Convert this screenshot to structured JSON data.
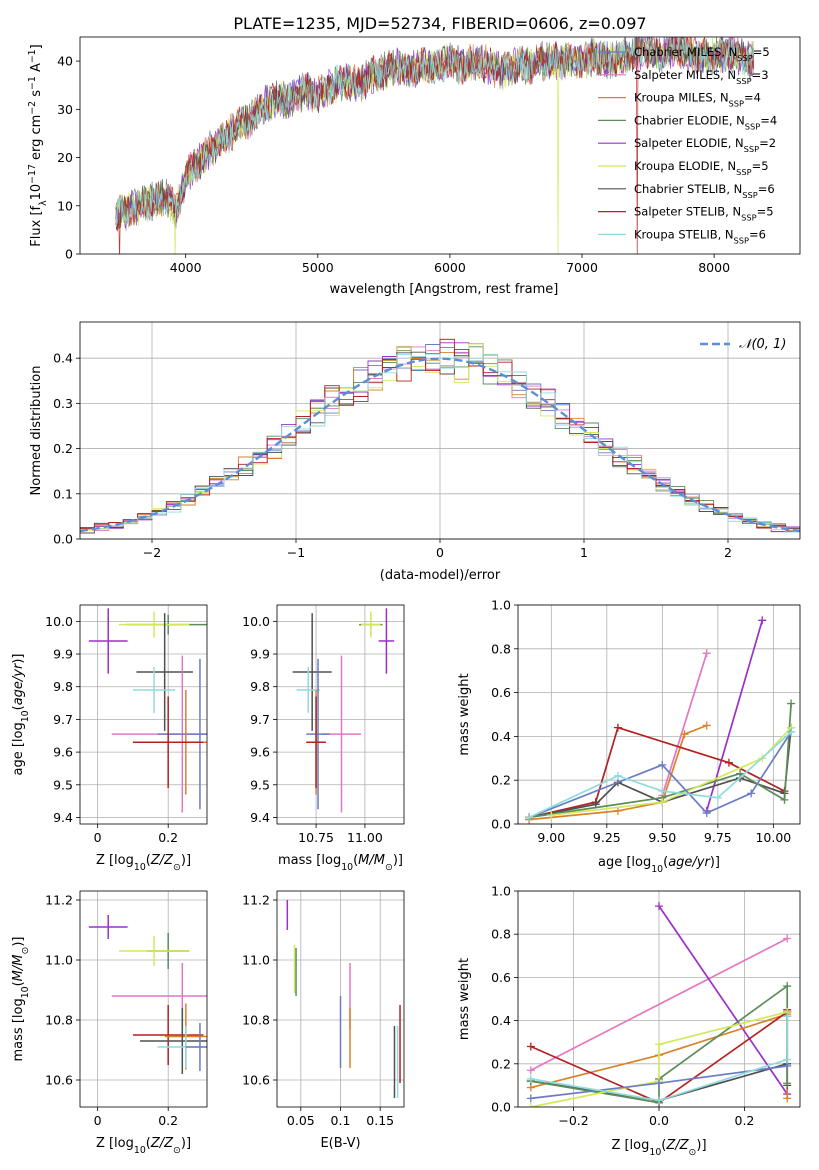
{
  "figure": {
    "title": "PLATE=1235, MJD=52734, FIBERID=0606, z=0.097"
  },
  "chart_data": [
    {
      "id": "spectrum",
      "type": "line",
      "title": "PLATE=1235, MJD=52734, FIBERID=0606, z=0.097",
      "xlabel": "wavelength [Angstrom, rest frame]",
      "ylabel": "Flux [f_λ10^-17 erg cm^-2 s^-1 A^-1]",
      "xlim": [
        3200,
        8650
      ],
      "ylim": [
        0,
        45
      ],
      "xticks": [
        4000,
        5000,
        6000,
        7000,
        8000
      ],
      "yticks": [
        0,
        10,
        20,
        30,
        40
      ],
      "grid": false,
      "legend_position": "top-right",
      "spectrum": {
        "wavelength": [
          3470,
          3550,
          3650,
          3750,
          3850,
          3930,
          4000,
          4100,
          4200,
          4300,
          4400,
          4500,
          4600,
          4700,
          4800,
          4900,
          5000,
          5100,
          5200,
          5300,
          5400,
          5500,
          5600,
          5700,
          5800,
          5900,
          6000,
          6100,
          6200,
          6300,
          6400,
          6500,
          6600,
          6700,
          6800,
          6900,
          7000,
          7100,
          7200,
          7300,
          7400,
          7500,
          7600,
          7700,
          7800,
          7900,
          8000,
          8100,
          8200,
          8300
        ],
        "flux": [
          8,
          9,
          10,
          11,
          12,
          9,
          16,
          19,
          22,
          24,
          27,
          28,
          31,
          32,
          32,
          34,
          33,
          35,
          36,
          35,
          37,
          38,
          39,
          38,
          39,
          39,
          40,
          39,
          40,
          39,
          38,
          39,
          39,
          40,
          40,
          40,
          40,
          41,
          40,
          41,
          42,
          42,
          41,
          43,
          42,
          41,
          41,
          42,
          41,
          40
        ],
        "dropouts": [
          {
            "series": "Salpeter STELIB, N_SSP=5",
            "wavelength": 7420
          },
          {
            "series": "Kroupa ELODIE, N_SSP=5",
            "wavelength": 6820
          },
          {
            "series": "Kroupa ELODIE, N_SSP=5",
            "wavelength": 3920
          },
          {
            "series": "Salpeter STELIB, N_SSP=5",
            "wavelength": 3500
          }
        ]
      },
      "series": [
        {
          "name": "Chabrier MILES, N_SSP=5",
          "color": "#6a7cc4"
        },
        {
          "name": "Salpeter MILES, N_SSP=3",
          "color": "#e377c2"
        },
        {
          "name": "Kroupa MILES, N_SSP=4",
          "color": "#d9822b"
        },
        {
          "name": "Chabrier ELODIE, N_SSP=4",
          "color": "#5b8c5a"
        },
        {
          "name": "Salpeter ELODIE, N_SSP=2",
          "color": "#9b30c9"
        },
        {
          "name": "Kroupa ELODIE, N_SSP=5",
          "color": "#d4e85c"
        },
        {
          "name": "Chabrier STELIB, N_SSP=6",
          "color": "#505050"
        },
        {
          "name": "Salpeter STELIB, N_SSP=5",
          "color": "#b22222"
        },
        {
          "name": "Kroupa STELIB, N_SSP=6",
          "color": "#8fdcdc"
        }
      ]
    },
    {
      "id": "residuals",
      "type": "line",
      "xlabel": "(data-model)/error",
      "ylabel": "Normed distribution",
      "xlim": [
        -2.5,
        2.5
      ],
      "ylim": [
        0,
        0.48
      ],
      "xticks": [
        -2,
        -1,
        0,
        1,
        2
      ],
      "xtick_labels": [
        "−2",
        "−1",
        "0",
        "1",
        "2"
      ],
      "yticks": [
        0.0,
        0.1,
        0.2,
        0.3,
        0.4
      ],
      "grid": true,
      "legend_position": "top-right",
      "legend": "𝒩(0, 1)",
      "gaussian_color": "#5a8fd6",
      "bin_width": 0.1
    },
    {
      "id": "age-vs-Z",
      "type": "scatter",
      "xlabel": "Z [log10(Z/Z⊙)]",
      "ylabel": "age  [log10(age/yr)]",
      "xlim": [
        -0.05,
        0.31
      ],
      "ylim": [
        9.38,
        10.05
      ],
      "xticks": [
        0.0,
        0.2
      ],
      "yticks": [
        9.4,
        9.5,
        9.6,
        9.7,
        9.8,
        9.9,
        10.0
      ],
      "points": [
        {
          "color": "#9b30c9",
          "x": 0.03,
          "xerr": 0.055,
          "y": 9.94,
          "yerr": 0.1
        },
        {
          "color": "#5b8c5a",
          "x": 0.2,
          "xerr": 0.12,
          "y": 9.99,
          "yerr": 0.03
        },
        {
          "color": "#d4e85c",
          "x": 0.16,
          "xerr": 0.1,
          "y": 9.99,
          "yerr": 0.04
        },
        {
          "color": "#505050",
          "x": 0.19,
          "xerr": 0.08,
          "y": 9.845,
          "yerr": 0.18
        },
        {
          "color": "#8fdcdc",
          "x": 0.16,
          "xerr": 0.06,
          "y": 9.79,
          "yerr": 0.07
        },
        {
          "color": "#e377c2",
          "x": 0.24,
          "xerr": 0.2,
          "y": 9.655,
          "yerr": 0.24
        },
        {
          "color": "#6a7cc4",
          "x": 0.29,
          "xerr": 0.12,
          "y": 9.655,
          "yerr": 0.23
        },
        {
          "color": "#d9822b",
          "x": 0.25,
          "xerr": 0.09,
          "y": 9.63,
          "yerr": 0.16
        },
        {
          "color": "#b22222",
          "x": 0.2,
          "xerr": 0.1,
          "y": 9.63,
          "yerr": 0.14
        }
      ]
    },
    {
      "id": "age-vs-mass",
      "type": "scatter",
      "xlabel": "mass [log10(M/M⊙)]",
      "xlim": [
        10.55,
        11.2
      ],
      "ylim": [
        9.38,
        10.05
      ],
      "xticks": [
        10.75,
        11.0
      ],
      "xtick_labels": [
        "10.75",
        "11.00"
      ],
      "yticks": [
        9.4,
        9.5,
        9.6,
        9.7,
        9.8,
        9.9,
        10.0
      ],
      "points": [
        {
          "color": "#9b30c9",
          "x": 11.11,
          "xerr": 0.04,
          "y": 9.94,
          "yerr": 0.1
        },
        {
          "color": "#5b8c5a",
          "x": 11.03,
          "xerr": 0.06,
          "y": 9.99,
          "yerr": 0.03
        },
        {
          "color": "#d4e85c",
          "x": 11.03,
          "xerr": 0.05,
          "y": 9.99,
          "yerr": 0.04
        },
        {
          "color": "#505050",
          "x": 10.73,
          "xerr": 0.1,
          "y": 9.845,
          "yerr": 0.18
        },
        {
          "color": "#8fdcdc",
          "x": 10.71,
          "xerr": 0.06,
          "y": 9.79,
          "yerr": 0.07
        },
        {
          "color": "#e377c2",
          "x": 10.88,
          "xerr": 0.1,
          "y": 9.655,
          "yerr": 0.24
        },
        {
          "color": "#6a7cc4",
          "x": 10.76,
          "xerr": 0.06,
          "y": 9.655,
          "yerr": 0.23
        },
        {
          "color": "#d9822b",
          "x": 10.75,
          "xerr": 0.05,
          "y": 9.63,
          "yerr": 0.16
        },
        {
          "color": "#b22222",
          "x": 10.75,
          "xerr": 0.05,
          "y": 9.63,
          "yerr": 0.14
        }
      ]
    },
    {
      "id": "mass-weight-vs-age",
      "type": "line",
      "xlabel": "age  [log10(age/yr)]",
      "ylabel": "mass weight",
      "xlim": [
        8.85,
        10.12
      ],
      "ylim": [
        0,
        1
      ],
      "xticks": [
        9.0,
        9.25,
        9.5,
        9.75,
        10.0
      ],
      "xtick_labels": [
        "9.00",
        "9.25",
        "9.50",
        "9.75",
        "10.00"
      ],
      "yticks": [
        0.0,
        0.2,
        0.4,
        0.6,
        0.8,
        1.0
      ],
      "grid": true,
      "series": [
        {
          "color": "#e377c2",
          "x": [
            9.5,
            9.7
          ],
          "y": [
            0.13,
            0.78
          ]
        },
        {
          "color": "#9b30c9",
          "x": [
            9.7,
            9.95
          ],
          "y": [
            0.06,
            0.93
          ]
        },
        {
          "color": "#d9822b",
          "x": [
            8.9,
            9.3,
            9.5,
            9.6,
            9.7
          ],
          "y": [
            0.02,
            0.06,
            0.1,
            0.41,
            0.45
          ]
        },
        {
          "color": "#b22222",
          "x": [
            8.9,
            9.2,
            9.3,
            9.8,
            10.05
          ],
          "y": [
            0.03,
            0.1,
            0.44,
            0.28,
            0.15
          ]
        },
        {
          "color": "#505050",
          "x": [
            8.9,
            9.2,
            9.3,
            9.5,
            9.85,
            10.05,
            10.08
          ],
          "y": [
            0.03,
            0.09,
            0.19,
            0.1,
            0.21,
            0.14,
            0.44
          ]
        },
        {
          "color": "#5b8c5a",
          "x": [
            8.9,
            9.5,
            9.85,
            10.05,
            10.08
          ],
          "y": [
            0.03,
            0.12,
            0.23,
            0.11,
            0.55
          ]
        },
        {
          "color": "#d4e85c",
          "x": [
            9.0,
            9.5,
            9.95,
            10.08
          ],
          "y": [
            0.04,
            0.1,
            0.3,
            0.44
          ]
        },
        {
          "color": "#6a7cc4",
          "x": [
            8.9,
            9.5,
            9.7,
            9.9,
            10.08
          ],
          "y": [
            0.03,
            0.27,
            0.05,
            0.14,
            0.42
          ]
        },
        {
          "color": "#8fdcdc",
          "x": [
            8.9,
            9.3,
            9.5,
            9.75,
            10.08
          ],
          "y": [
            0.03,
            0.22,
            0.15,
            0.12,
            0.42
          ]
        }
      ]
    },
    {
      "id": "mass-vs-Z",
      "type": "scatter",
      "xlabel": "Z [log10(Z/Z⊙)]",
      "ylabel": "mass [log10(M/M⊙)]",
      "xlim": [
        -0.05,
        0.31
      ],
      "ylim": [
        10.51,
        11.23
      ],
      "xticks": [
        0.0,
        0.2
      ],
      "yticks": [
        10.6,
        10.8,
        11.0,
        11.2
      ],
      "points": [
        {
          "color": "#9b30c9",
          "x": 0.03,
          "xerr": 0.055,
          "y": 11.11,
          "yerr": 0.04
        },
        {
          "color": "#5b8c5a",
          "x": 0.2,
          "xerr": 0.06,
          "y": 11.03,
          "yerr": 0.06
        },
        {
          "color": "#d4e85c",
          "x": 0.16,
          "xerr": 0.1,
          "y": 11.03,
          "yerr": 0.05
        },
        {
          "color": "#e377c2",
          "x": 0.24,
          "xerr": 0.2,
          "y": 10.88,
          "yerr": 0.11
        },
        {
          "color": "#b22222",
          "x": 0.2,
          "xerr": 0.1,
          "y": 10.75,
          "yerr": 0.1
        },
        {
          "color": "#d9822b",
          "x": 0.25,
          "xerr": 0.06,
          "y": 10.745,
          "yerr": 0.11
        },
        {
          "color": "#505050",
          "x": 0.24,
          "xerr": 0.12,
          "y": 10.73,
          "yerr": 0.11
        },
        {
          "color": "#8fdcdc",
          "x": 0.25,
          "xerr": 0.08,
          "y": 10.71,
          "yerr": 0.07
        },
        {
          "color": "#6a7cc4",
          "x": 0.29,
          "xerr": 0.04,
          "y": 10.71,
          "yerr": 0.08
        }
      ]
    },
    {
      "id": "mass-vs-ebv",
      "type": "scatter",
      "xlabel": "E(B-V)",
      "xlim": [
        0.02,
        0.18
      ],
      "ylim": [
        10.51,
        11.23
      ],
      "xticks": [
        0.05,
        0.1,
        0.15
      ],
      "yticks": [
        10.6,
        10.8,
        11.0,
        11.2
      ],
      "points": [
        {
          "color": "#9b30c9",
          "x": 0.033,
          "y": 11.15,
          "yerr": 0.05
        },
        {
          "color": "#d4e85c",
          "x": 0.042,
          "y": 10.97,
          "yerr": 0.08
        },
        {
          "color": "#5b8c5a",
          "x": 0.044,
          "y": 10.96,
          "yerr": 0.08
        },
        {
          "color": "#6a7cc4",
          "x": 0.1,
          "y": 10.76,
          "yerr": 0.12
        },
        {
          "color": "#e377c2",
          "x": 0.112,
          "y": 10.88,
          "yerr": 0.11
        },
        {
          "color": "#d9822b",
          "x": 0.112,
          "y": 10.74,
          "yerr": 0.1
        },
        {
          "color": "#b22222",
          "x": 0.175,
          "y": 10.72,
          "yerr": 0.13
        },
        {
          "color": "#505050",
          "x": 0.168,
          "y": 10.66,
          "yerr": 0.12
        },
        {
          "color": "#8fdcdc",
          "x": 0.172,
          "y": 10.66,
          "yerr": 0.12
        }
      ]
    },
    {
      "id": "mass-weight-vs-Z",
      "type": "line",
      "xlabel": "Z [log10(Z/Z⊙)]",
      "ylabel": "mass weight",
      "xlim": [
        -0.33,
        0.33
      ],
      "ylim": [
        0,
        1
      ],
      "xticks": [
        -0.2,
        0.0,
        0.2
      ],
      "xtick_labels": [
        "−0.2",
        "0.0",
        "0.2"
      ],
      "yticks": [
        0.0,
        0.2,
        0.4,
        0.6,
        0.8,
        1.0
      ],
      "grid": true,
      "series": [
        {
          "color": "#e377c2",
          "x": [
            -0.3,
            0.3
          ],
          "y": [
            0.17,
            0.78
          ]
        },
        {
          "color": "#9b30c9",
          "x": [
            0.0,
            0.3
          ],
          "y": [
            0.93,
            0.06
          ]
        },
        {
          "color": "#d9822b",
          "x": [
            -0.3,
            0.0,
            0.3,
            0.3
          ],
          "y": [
            0.09,
            0.24,
            0.43,
            0.04
          ]
        },
        {
          "color": "#b22222",
          "x": [
            -0.3,
            0.0,
            0.3,
            0.3
          ],
          "y": [
            0.28,
            0.02,
            0.44,
            0.45
          ]
        },
        {
          "color": "#505050",
          "x": [
            -0.3,
            0.0,
            0.3,
            0.3,
            0.3
          ],
          "y": [
            0.12,
            0.03,
            0.2,
            0.1,
            0.44
          ]
        },
        {
          "color": "#5b8c5a",
          "x": [
            -0.3,
            0.0,
            0.0,
            0.3,
            0.3
          ],
          "y": [
            0.12,
            0.02,
            0.13,
            0.56,
            0.11
          ]
        },
        {
          "color": "#d4e85c",
          "x": [
            -0.3,
            0.0,
            0.0,
            0.3
          ],
          "y": [
            0.0,
            0.12,
            0.29,
            0.44
          ]
        },
        {
          "color": "#6a7cc4",
          "x": [
            -0.3,
            0.0,
            0.3,
            0.3
          ],
          "y": [
            0.04,
            0.11,
            0.19,
            0.42
          ]
        },
        {
          "color": "#8fdcdc",
          "x": [
            -0.3,
            0.0,
            0.3,
            0.3
          ],
          "y": [
            0.13,
            0.03,
            0.22,
            0.42
          ]
        }
      ]
    }
  ]
}
